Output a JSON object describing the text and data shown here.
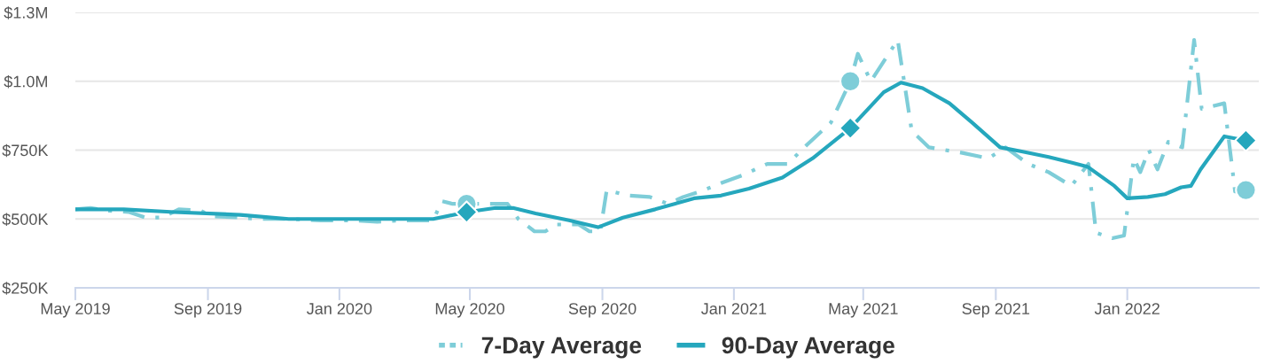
{
  "chart_data": {
    "type": "line",
    "xlim": [
      "2019-05-01",
      "2022-05-03"
    ],
    "xticks": [
      {
        "value": "2019-05-01",
        "label": "May 2019"
      },
      {
        "value": "2019-09-01",
        "label": "Sep 2019"
      },
      {
        "value": "2020-01-01",
        "label": "Jan 2020"
      },
      {
        "value": "2020-05-01",
        "label": "May 2020"
      },
      {
        "value": "2020-09-01",
        "label": "Sep 2020"
      },
      {
        "value": "2021-01-01",
        "label": "Jan 2021"
      },
      {
        "value": "2021-05-01",
        "label": "May 2021"
      },
      {
        "value": "2021-09-01",
        "label": "Sep 2021"
      },
      {
        "value": "2022-01-01",
        "label": "Jan 2022"
      }
    ],
    "ylim": [
      250000,
      1250000
    ],
    "yticks": [
      {
        "value": 250000,
        "label": "$250K"
      },
      {
        "value": 500000,
        "label": "$500K"
      },
      {
        "value": 750000,
        "label": "$750K"
      },
      {
        "value": 1000000,
        "label": "$1.0M"
      },
      {
        "value": 1250000,
        "label": "$1.3M"
      }
    ],
    "grid": "y",
    "legend": "bottom",
    "series": [
      {
        "name": "7-Day Average",
        "color": "#7ecdd8",
        "line_style": "dashed",
        "marker": "none",
        "x": [
          "2019-05-01",
          "2019-05-15",
          "2019-06-01",
          "2019-06-20",
          "2019-07-05",
          "2019-07-20",
          "2019-08-05",
          "2019-08-25",
          "2019-09-05",
          "2019-10-01",
          "2019-10-20",
          "2019-11-15",
          "2019-12-15",
          "2020-01-15",
          "2020-02-05",
          "2020-03-01",
          "2020-03-28",
          "2020-04-05",
          "2020-04-15",
          "2020-04-28",
          "2020-05-15",
          "2020-06-05",
          "2020-06-15",
          "2020-06-30",
          "2020-07-10",
          "2020-07-20",
          "2020-08-10",
          "2020-08-20",
          "2020-08-30",
          "2020-09-05",
          "2020-09-25",
          "2020-10-15",
          "2020-11-01",
          "2020-11-15",
          "2020-12-01",
          "2020-12-20",
          "2021-01-10",
          "2021-02-01",
          "2021-02-20",
          "2021-03-10",
          "2021-04-01",
          "2021-04-19",
          "2021-04-26",
          "2021-05-08",
          "2021-06-02",
          "2021-06-15",
          "2021-07-01",
          "2021-08-01",
          "2021-08-25",
          "2021-09-10",
          "2021-10-01",
          "2021-10-20",
          "2021-11-10",
          "2021-11-26",
          "2021-12-03",
          "2021-12-18",
          "2021-12-29",
          "2022-01-07",
          "2022-01-13",
          "2022-01-21",
          "2022-01-29",
          "2022-02-08",
          "2022-02-21",
          "2022-03-04",
          "2022-03-11",
          "2022-04-01",
          "2022-04-11",
          "2022-04-21"
        ],
        "values": [
          535000,
          540000,
          530000,
          525000,
          505000,
          505000,
          535000,
          530000,
          510000,
          505000,
          500000,
          500000,
          495000,
          495000,
          490000,
          495000,
          495000,
          565000,
          555000,
          555000,
          555000,
          555000,
          500000,
          455000,
          455000,
          480000,
          480000,
          455000,
          455000,
          605000,
          585000,
          580000,
          555000,
          580000,
          600000,
          630000,
          660000,
          700000,
          700000,
          770000,
          850000,
          1000000,
          1100000,
          1000000,
          1150000,
          820000,
          760000,
          740000,
          720000,
          760000,
          700000,
          670000,
          620000,
          700000,
          450000,
          430000,
          440000,
          720000,
          670000,
          750000,
          680000,
          780000,
          760000,
          1150000,
          900000,
          920000,
          600000,
          605000
        ]
      },
      {
        "name": "90-Day Average",
        "color": "#25a7bd",
        "line_style": "solid",
        "marker": "none",
        "x": [
          "2019-05-01",
          "2019-06-15",
          "2019-08-01",
          "2019-10-01",
          "2019-11-15",
          "2020-01-15",
          "2020-03-28",
          "2020-04-28",
          "2020-05-25",
          "2020-06-10",
          "2020-07-01",
          "2020-08-01",
          "2020-08-28",
          "2020-09-20",
          "2020-10-20",
          "2020-11-25",
          "2020-12-20",
          "2021-01-15",
          "2021-02-15",
          "2021-03-15",
          "2021-04-19",
          "2021-05-20",
          "2021-06-05",
          "2021-06-25",
          "2021-07-20",
          "2021-08-10",
          "2021-09-05",
          "2021-09-25",
          "2021-10-20",
          "2021-11-10",
          "2021-11-25",
          "2021-12-20",
          "2022-01-01",
          "2022-01-20",
          "2022-02-05",
          "2022-02-20",
          "2022-03-01",
          "2022-03-10",
          "2022-04-01",
          "2022-04-21"
        ],
        "values": [
          535000,
          535000,
          525000,
          515000,
          500000,
          500000,
          500000,
          525000,
          540000,
          540000,
          520000,
          495000,
          470000,
          505000,
          535000,
          575000,
          585000,
          610000,
          650000,
          720000,
          830000,
          960000,
          995000,
          975000,
          920000,
          850000,
          760000,
          745000,
          725000,
          705000,
          690000,
          620000,
          575000,
          580000,
          590000,
          615000,
          620000,
          680000,
          800000,
          785000
        ]
      },
      {
        "type": "scatter",
        "color": "#7ecdd8",
        "marker": "circle",
        "x": [
          "2020-04-28",
          "2021-04-19",
          "2022-04-21"
        ],
        "values": [
          555000,
          1000000,
          605000
        ]
      },
      {
        "type": "scatter",
        "color": "#25a7bd",
        "marker": "diamond",
        "x": [
          "2020-04-28",
          "2021-04-19",
          "2022-04-21"
        ],
        "values": [
          525000,
          830000,
          785000
        ]
      }
    ]
  }
}
